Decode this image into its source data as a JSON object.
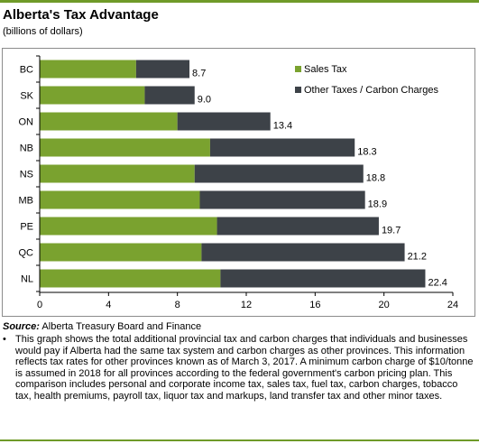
{
  "header": {
    "title": "Alberta's Tax Advantage",
    "subtitle": "(billions of dollars)"
  },
  "colors": {
    "sales_tax": "#7aa22f",
    "other_taxes": "#3d4248",
    "accent_rule": "#6f9a28"
  },
  "chart_data": {
    "type": "bar",
    "orientation": "horizontal",
    "stacked": true,
    "categories": [
      "BC",
      "SK",
      "ON",
      "NB",
      "NS",
      "MB",
      "PE",
      "QC",
      "NL"
    ],
    "series": [
      {
        "name": "Sales Tax",
        "values": [
          5.6,
          6.1,
          8.0,
          9.9,
          9.0,
          9.3,
          10.3,
          9.4,
          10.5
        ]
      },
      {
        "name": "Other Taxes / Carbon Charges",
        "values": [
          3.1,
          2.9,
          5.4,
          8.4,
          9.8,
          9.6,
          9.4,
          11.8,
          11.9
        ]
      }
    ],
    "totals": [
      "8.7",
      "9.0",
      "13.4",
      "18.3",
      "18.8",
      "18.9",
      "19.7",
      "21.2",
      "22.4"
    ],
    "xlim": [
      0,
      24
    ],
    "xticks": [
      0,
      4,
      8,
      12,
      16,
      20,
      24
    ],
    "grid": false,
    "legend_position": "top-right"
  },
  "footer": {
    "source_label": "Source:",
    "source_text": "Alberta Treasury Board and Finance",
    "bullet": "•",
    "note": "This graph shows the total additional provincial tax and carbon charges that individuals and businesses would pay if Alberta had the same tax system and carbon charges as other provinces. This information reflects tax rates for other provinces known as of March 3, 2017. A minimum carbon charge of $10/tonne is assumed in 2018 for all provinces according to the federal government's carbon pricing plan. This comparison includes personal and corporate income tax, sales tax, fuel tax, carbon charges, tobacco tax, health premiums, payroll tax, liquor tax and markups, land transfer tax and other minor taxes."
  }
}
